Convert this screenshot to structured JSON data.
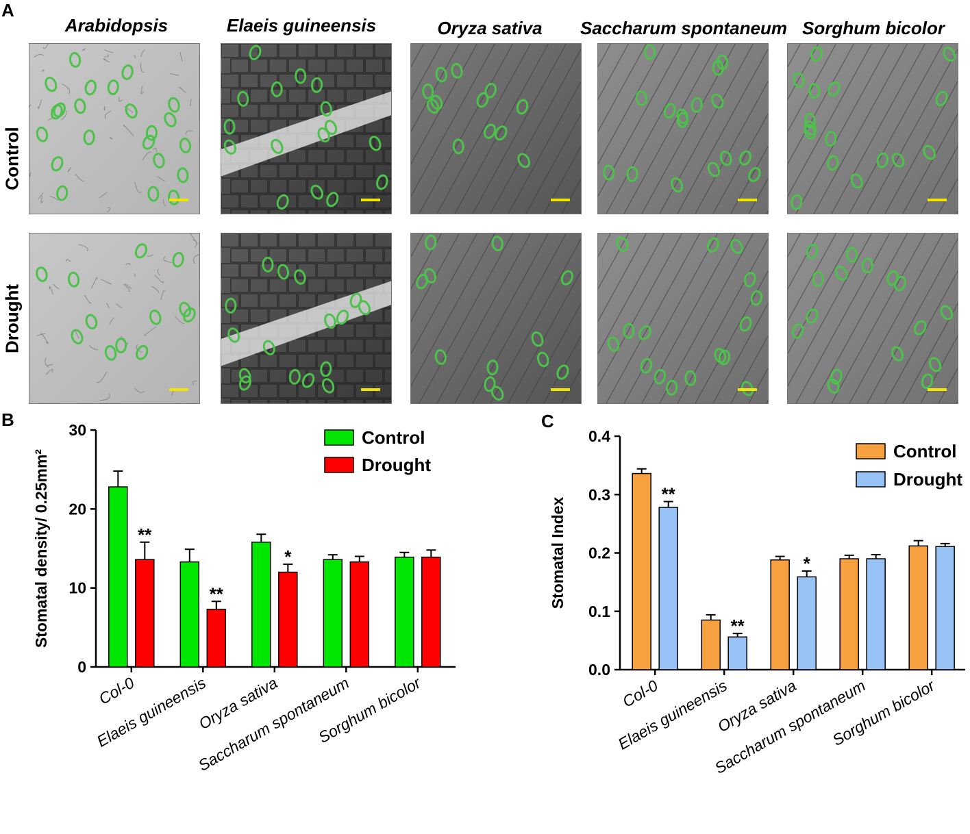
{
  "panel_a": {
    "letter": "A",
    "columns": [
      "Arabidopsis",
      "Elaeis guineensis",
      "Oryza sativa",
      "Saccharum spontaneum",
      "Sorghum bicolor"
    ],
    "rows": [
      "Control",
      "Drought"
    ],
    "colors": {
      "stomata": "#4cc24a",
      "scale_bar": "#f2e600"
    }
  },
  "chart_data": [
    {
      "panel": "B",
      "type": "bar",
      "categories": [
        "Col-0",
        "Elaeis guineensis",
        "Oryza sativa",
        "Saccharum spontaneum",
        "Sorghum bicolor"
      ],
      "ylabel": "Stomatal density/ 0.25mm²",
      "ylim": [
        0,
        30
      ],
      "yticks": [
        "0",
        "10",
        "20",
        "30"
      ],
      "legend_position": "top-right",
      "series": [
        {
          "name": "Control",
          "color": "#00e600",
          "values": [
            22.8,
            13.3,
            15.8,
            13.6,
            13.9
          ],
          "errors": [
            2.0,
            1.6,
            1.0,
            0.6,
            0.6
          ]
        },
        {
          "name": "Drought",
          "color": "#ff0000",
          "values": [
            13.6,
            7.3,
            12.0,
            13.3,
            13.9
          ],
          "errors": [
            2.2,
            1.0,
            1.0,
            0.7,
            0.9
          ]
        }
      ],
      "significance": [
        "**",
        "**",
        "*",
        "",
        ""
      ]
    },
    {
      "panel": "C",
      "type": "bar",
      "categories": [
        "Col-0",
        "Elaeis guineensis",
        "Oryza sativa",
        "Saccharum spontaneum",
        "Sorghum bicolor"
      ],
      "ylabel": "Stomatal Index",
      "ylim": [
        0,
        0.4
      ],
      "yticks": [
        "0.0",
        "0.1",
        "0.2",
        "0.3",
        "0.4"
      ],
      "legend_position": "top-right",
      "series": [
        {
          "name": "Control",
          "color": "#f7a040",
          "values": [
            0.336,
            0.085,
            0.188,
            0.19,
            0.212
          ],
          "errors": [
            0.008,
            0.009,
            0.006,
            0.006,
            0.009
          ]
        },
        {
          "name": "Drought",
          "color": "#96c2f6",
          "values": [
            0.278,
            0.056,
            0.159,
            0.19,
            0.211
          ],
          "errors": [
            0.01,
            0.006,
            0.01,
            0.007,
            0.005
          ]
        }
      ],
      "significance": [
        "**",
        "**",
        "*",
        "",
        ""
      ]
    }
  ]
}
